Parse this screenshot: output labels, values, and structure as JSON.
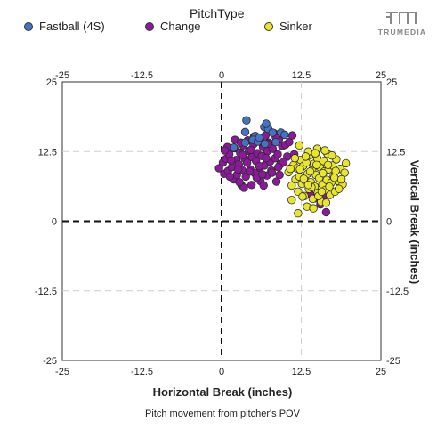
{
  "legend": {
    "title": "PitchType",
    "items": [
      {
        "label": "Fastball (4S)",
        "color": "#4472c4"
      },
      {
        "label": "Change",
        "color": "#8b1a9b"
      },
      {
        "label": "Sinker",
        "color": "#e8e52a"
      }
    ]
  },
  "logo": {
    "text": "TRUMEDIA"
  },
  "chart_data": {
    "type": "scatter",
    "title": "",
    "caption": "Pitch movement from pitcher's POV",
    "xlabel": "Horizontal Break (inches)",
    "ylabel": "Vertical Break (inches)",
    "xlim": [
      -25,
      25
    ],
    "ylim": [
      -25,
      25
    ],
    "xticks": [
      "-25",
      "-12.5",
      "0",
      "12.5",
      "25"
    ],
    "yticks": [
      "25",
      "12.5",
      "0",
      "-12.5",
      "-25"
    ],
    "grid": true,
    "legend_position": "top",
    "series": [
      {
        "name": "Fastball (4S)",
        "color": "#4472c4",
        "points": [
          [
            3.7,
            16.0
          ],
          [
            5.3,
            15.3
          ],
          [
            6.7,
            16.9
          ],
          [
            7.3,
            16.6
          ],
          [
            8.0,
            15.9
          ],
          [
            9.3,
            15.9
          ],
          [
            3.7,
            14.1
          ],
          [
            4.9,
            14.6
          ],
          [
            5.7,
            14.3
          ],
          [
            6.8,
            13.9
          ],
          [
            1.9,
            13.2
          ],
          [
            3.9,
            18.1
          ],
          [
            7.0,
            17.5
          ],
          [
            9.9,
            15.5
          ],
          [
            5.9,
            15.0
          ],
          [
            8.5,
            14.2
          ]
        ]
      },
      {
        "name": "Change",
        "color": "#8b1a9b",
        "points": [
          [
            -0.4,
            9.5
          ],
          [
            0.2,
            10.5
          ],
          [
            0.4,
            8.5
          ],
          [
            0.7,
            11.2
          ],
          [
            1.0,
            9.0
          ],
          [
            1.2,
            12.0
          ],
          [
            1.6,
            9.7
          ],
          [
            1.9,
            7.5
          ],
          [
            2.0,
            13.1
          ],
          [
            2.3,
            11.0
          ],
          [
            2.4,
            8.3
          ],
          [
            2.7,
            10.2
          ],
          [
            2.9,
            12.3
          ],
          [
            3.1,
            6.5
          ],
          [
            3.2,
            9.2
          ],
          [
            3.4,
            13.6
          ],
          [
            3.6,
            11.3
          ],
          [
            3.8,
            8.0
          ],
          [
            4.0,
            10.5
          ],
          [
            4.1,
            14.5
          ],
          [
            4.3,
            12.6
          ],
          [
            4.5,
            9.3
          ],
          [
            4.7,
            6.5
          ],
          [
            4.8,
            11.5
          ],
          [
            5.0,
            13.8
          ],
          [
            5.2,
            8.6
          ],
          [
            5.4,
            10.8
          ],
          [
            5.6,
            12.2
          ],
          [
            5.8,
            14.7
          ],
          [
            6.0,
            9.6
          ],
          [
            6.1,
            7.2
          ],
          [
            6.3,
            11.7
          ],
          [
            6.5,
            13.3
          ],
          [
            6.7,
            10.0
          ],
          [
            6.9,
            15.4
          ],
          [
            7.1,
            8.2
          ],
          [
            7.2,
            12.6
          ],
          [
            7.4,
            14.1
          ],
          [
            7.6,
            10.7
          ],
          [
            7.8,
            9.1
          ],
          [
            8.0,
            13.0
          ],
          [
            8.2,
            15.8
          ],
          [
            8.4,
            11.3
          ],
          [
            8.6,
            7.1
          ],
          [
            8.8,
            12.0
          ],
          [
            9.0,
            14.7
          ],
          [
            9.2,
            10.2
          ],
          [
            9.5,
            13.5
          ],
          [
            9.8,
            15.5
          ],
          [
            10.3,
            11.6
          ],
          [
            10.8,
            9.5
          ],
          [
            11.4,
            12.0
          ],
          [
            1.3,
            8.0
          ],
          [
            0.9,
            13.3
          ],
          [
            2.1,
            14.6
          ],
          [
            3.5,
            6.0
          ],
          [
            5.5,
            7.8
          ],
          [
            6.6,
            6.4
          ],
          [
            7.9,
            8.7
          ],
          [
            9.1,
            8.3
          ],
          [
            10.0,
            13.7
          ],
          [
            2.6,
            9.3
          ],
          [
            4.4,
            8.9
          ],
          [
            5.1,
            15.2
          ],
          [
            6.2,
            14.2
          ],
          [
            7.0,
            11.3
          ],
          [
            8.5,
            15.1
          ],
          [
            3.3,
            11.9
          ],
          [
            1.5,
            10.9
          ],
          [
            0.5,
            12.7
          ],
          [
            9.7,
            10.6
          ],
          [
            10.6,
            14.2
          ],
          [
            11.1,
            15.4
          ],
          [
            8.9,
            9.7
          ],
          [
            7.3,
            13.9
          ],
          [
            6.4,
            8.4
          ],
          [
            4.6,
            12.8
          ],
          [
            2.8,
            7.0
          ],
          [
            5.9,
            9.9
          ],
          [
            3.0,
            14.1
          ],
          [
            16.4,
            1.6
          ],
          [
            14.8,
            4.1
          ],
          [
            15.5,
            3.0
          ],
          [
            16.0,
            4.5
          ],
          [
            13.9,
            4.8
          ]
        ]
      },
      {
        "name": "Sinker",
        "color": "#e8e52a",
        "points": [
          [
            10.5,
            8.8
          ],
          [
            11.0,
            6.4
          ],
          [
            11.3,
            10.1
          ],
          [
            11.6,
            7.5
          ],
          [
            11.8,
            9.5
          ],
          [
            12.0,
            5.3
          ],
          [
            12.2,
            8.0
          ],
          [
            12.4,
            11.0
          ],
          [
            12.6,
            6.7
          ],
          [
            12.8,
            9.9
          ],
          [
            13.0,
            4.5
          ],
          [
            13.1,
            7.3
          ],
          [
            13.3,
            10.5
          ],
          [
            13.5,
            8.5
          ],
          [
            13.7,
            5.8
          ],
          [
            13.8,
            11.8
          ],
          [
            14.0,
            7.0
          ],
          [
            14.2,
            9.2
          ],
          [
            14.3,
            4.0
          ],
          [
            14.5,
            10.3
          ],
          [
            14.6,
            6.2
          ],
          [
            14.8,
            8.3
          ],
          [
            15.0,
            11.3
          ],
          [
            15.1,
            5.1
          ],
          [
            15.3,
            7.7
          ],
          [
            15.4,
            9.7
          ],
          [
            15.6,
            3.5
          ],
          [
            15.8,
            6.6
          ],
          [
            16.0,
            10.8
          ],
          [
            16.1,
            8.9
          ],
          [
            16.3,
            5.6
          ],
          [
            16.5,
            7.4
          ],
          [
            16.6,
            12.1
          ],
          [
            16.8,
            9.3
          ],
          [
            17.0,
            4.7
          ],
          [
            17.2,
            6.9
          ],
          [
            17.4,
            10.0
          ],
          [
            17.6,
            8.1
          ],
          [
            17.8,
            5.3
          ],
          [
            18.0,
            11.1
          ],
          [
            18.3,
            7.2
          ],
          [
            18.6,
            9.4
          ],
          [
            19.0,
            6.6
          ],
          [
            19.3,
            8.7
          ],
          [
            19.5,
            10.4
          ],
          [
            12.2,
            13.6
          ],
          [
            13.6,
            12.5
          ],
          [
            15.0,
            13.0
          ],
          [
            16.2,
            12.7
          ],
          [
            12.0,
            1.4
          ],
          [
            11.0,
            3.8
          ],
          [
            13.4,
            2.6
          ],
          [
            14.4,
            2.3
          ],
          [
            10.8,
            9.4
          ],
          [
            12.9,
            7.6
          ],
          [
            13.9,
            8.9
          ],
          [
            14.9,
            10.1
          ],
          [
            15.9,
            8.6
          ],
          [
            16.9,
            6.2
          ],
          [
            17.9,
            9.0
          ],
          [
            18.4,
            5.8
          ],
          [
            11.5,
            11.3
          ],
          [
            12.7,
            4.4
          ],
          [
            14.1,
            6.1
          ],
          [
            15.2,
            4.5
          ],
          [
            16.4,
            3.3
          ],
          [
            17.3,
            11.8
          ],
          [
            13.2,
            11.6
          ],
          [
            14.7,
            12.2
          ],
          [
            16.7,
            10.1
          ],
          [
            12.3,
            9.3
          ],
          [
            13.6,
            6.5
          ],
          [
            15.7,
            5.3
          ],
          [
            17.7,
            7.8
          ],
          [
            18.8,
            7.5
          ]
        ]
      }
    ]
  }
}
